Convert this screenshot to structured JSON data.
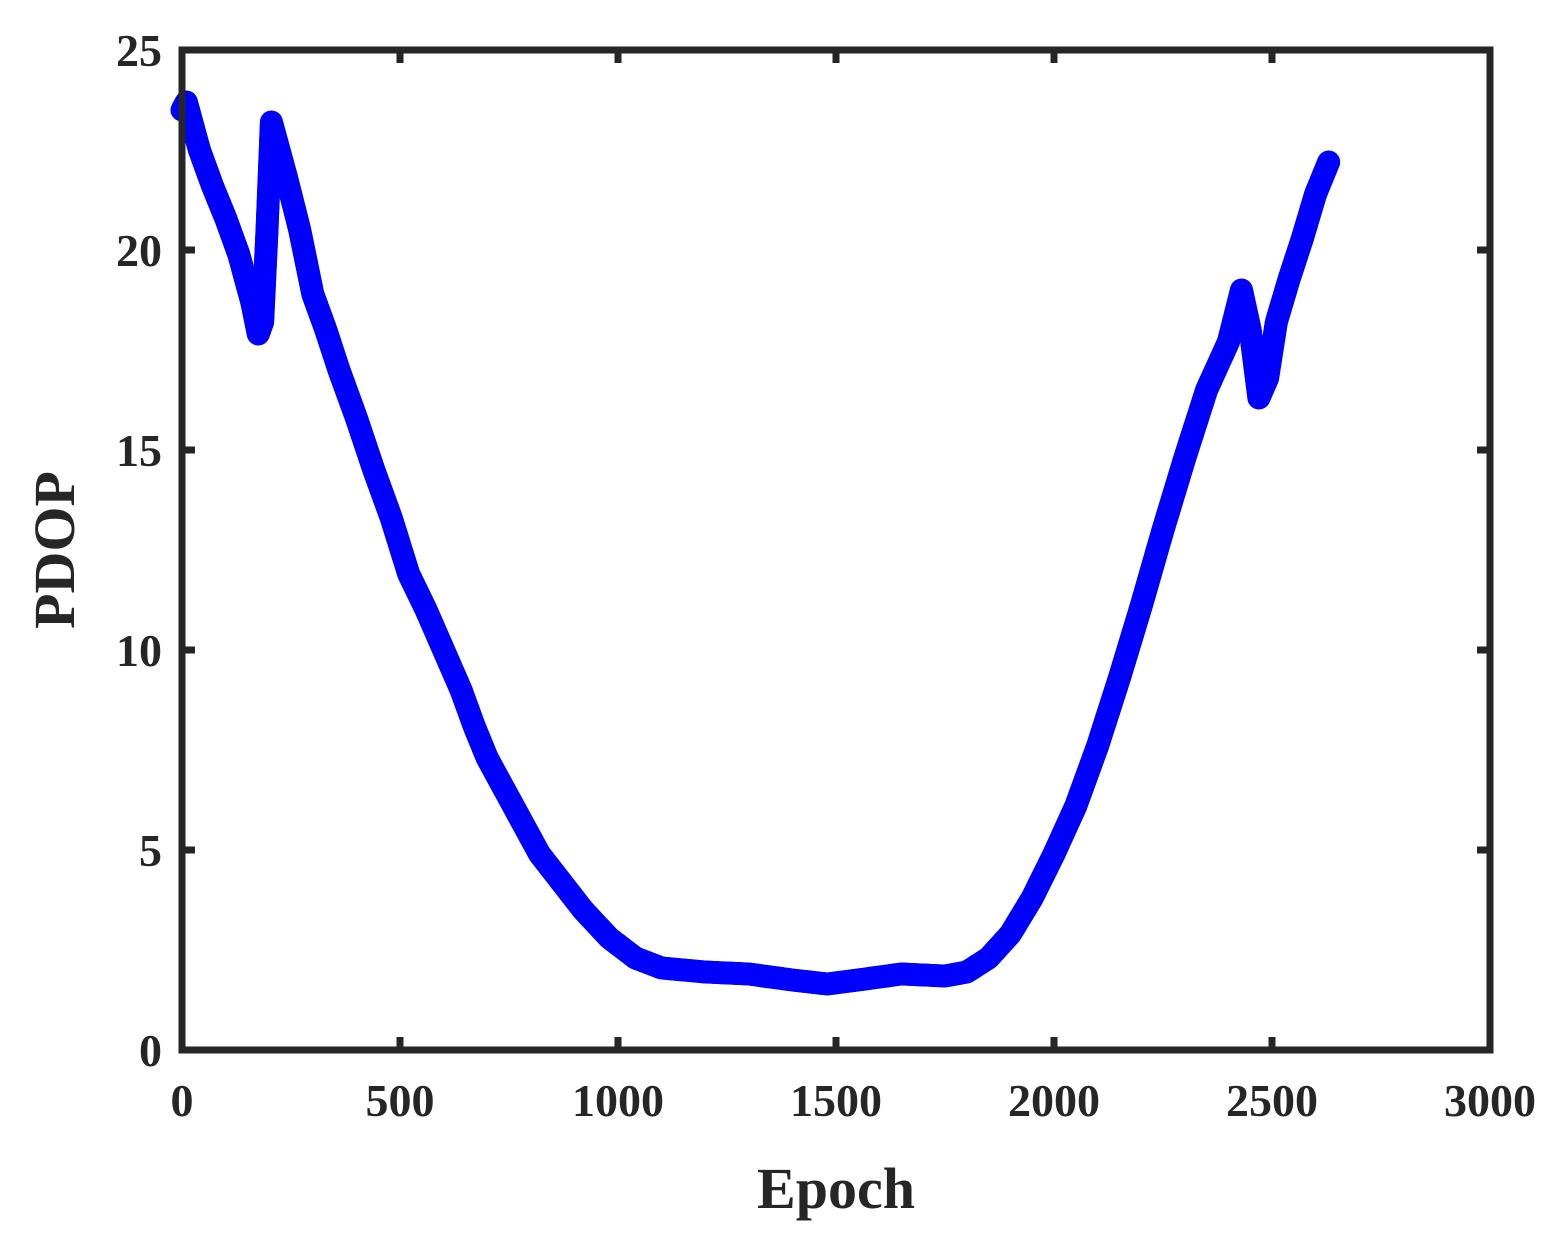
{
  "chart_data": {
    "type": "scatter",
    "xlabel": "Epoch",
    "ylabel": "PDOP",
    "xlim": [
      0,
      3000
    ],
    "ylim": [
      0,
      25
    ],
    "xticks": [
      0,
      500,
      1000,
      1500,
      2000,
      2500,
      3000
    ],
    "yticks": [
      0,
      5,
      10,
      15,
      20,
      25
    ],
    "grid": false,
    "legend": "none",
    "marker": "circle",
    "series": [
      {
        "color": "#0000ff",
        "points": [
          [
            0,
            23.5
          ],
          [
            10,
            23.7
          ],
          [
            20,
            23.3
          ],
          [
            40,
            22.5
          ],
          [
            70,
            21.6
          ],
          [
            100,
            20.8
          ],
          [
            130,
            19.9
          ],
          [
            160,
            18.7
          ],
          [
            175,
            17.9
          ],
          [
            185,
            18.2
          ],
          [
            195,
            20.5
          ],
          [
            205,
            23.2
          ],
          [
            215,
            22.8
          ],
          [
            240,
            21.8
          ],
          [
            270,
            20.5
          ],
          [
            300,
            18.9
          ],
          [
            330,
            18.0
          ],
          [
            360,
            17.0
          ],
          [
            400,
            15.8
          ],
          [
            440,
            14.5
          ],
          [
            480,
            13.3
          ],
          [
            520,
            11.9
          ],
          [
            560,
            11.0
          ],
          [
            600,
            10.0
          ],
          [
            640,
            9.0
          ],
          [
            670,
            8.1
          ],
          [
            700,
            7.3
          ],
          [
            740,
            6.5
          ],
          [
            780,
            5.7
          ],
          [
            820,
            4.9
          ],
          [
            870,
            4.2
          ],
          [
            920,
            3.5
          ],
          [
            980,
            2.8
          ],
          [
            1040,
            2.3
          ],
          [
            1100,
            2.05
          ],
          [
            1200,
            1.95
          ],
          [
            1300,
            1.9
          ],
          [
            1400,
            1.75
          ],
          [
            1480,
            1.65
          ],
          [
            1550,
            1.75
          ],
          [
            1650,
            1.9
          ],
          [
            1750,
            1.85
          ],
          [
            1800,
            1.95
          ],
          [
            1850,
            2.3
          ],
          [
            1900,
            2.9
          ],
          [
            1950,
            3.8
          ],
          [
            2000,
            4.9
          ],
          [
            2050,
            6.1
          ],
          [
            2100,
            7.6
          ],
          [
            2150,
            9.3
          ],
          [
            2200,
            11.1
          ],
          [
            2250,
            13.0
          ],
          [
            2300,
            14.8
          ],
          [
            2350,
            16.5
          ],
          [
            2400,
            17.7
          ],
          [
            2430,
            19.0
          ],
          [
            2450,
            18.0
          ],
          [
            2470,
            16.3
          ],
          [
            2490,
            16.8
          ],
          [
            2510,
            18.2
          ],
          [
            2540,
            19.3
          ],
          [
            2570,
            20.3
          ],
          [
            2600,
            21.4
          ],
          [
            2630,
            22.2
          ]
        ]
      }
    ]
  }
}
